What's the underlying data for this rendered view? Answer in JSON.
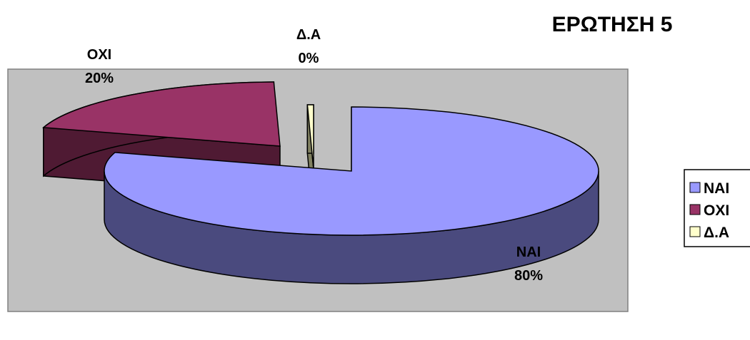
{
  "chart_data": {
    "type": "pie",
    "title": "ΕΡΩΤΗΣΗ 5",
    "categories": [
      "ΝΑΙ",
      "ΟΧΙ",
      "Δ.Α"
    ],
    "values": [
      80,
      20,
      0.4
    ],
    "data_labels": [
      {
        "name": "ΝΑΙ",
        "percent": "80%"
      },
      {
        "name": "ΟΧΙ",
        "percent": "20%"
      },
      {
        "name": "Δ.Α",
        "percent": "0%"
      }
    ],
    "colors": [
      "#9999ff",
      "#993366",
      "#ffffcc"
    ],
    "side_colors": [
      "#4a4a7e",
      "#4f1a33",
      "#808060"
    ],
    "plot_background": "#c0c0c0",
    "legend": {
      "position": "right",
      "items": [
        "ΝΑΙ",
        "ΟΧΙ",
        "Δ.Α"
      ]
    },
    "style": "3d-exploded"
  }
}
